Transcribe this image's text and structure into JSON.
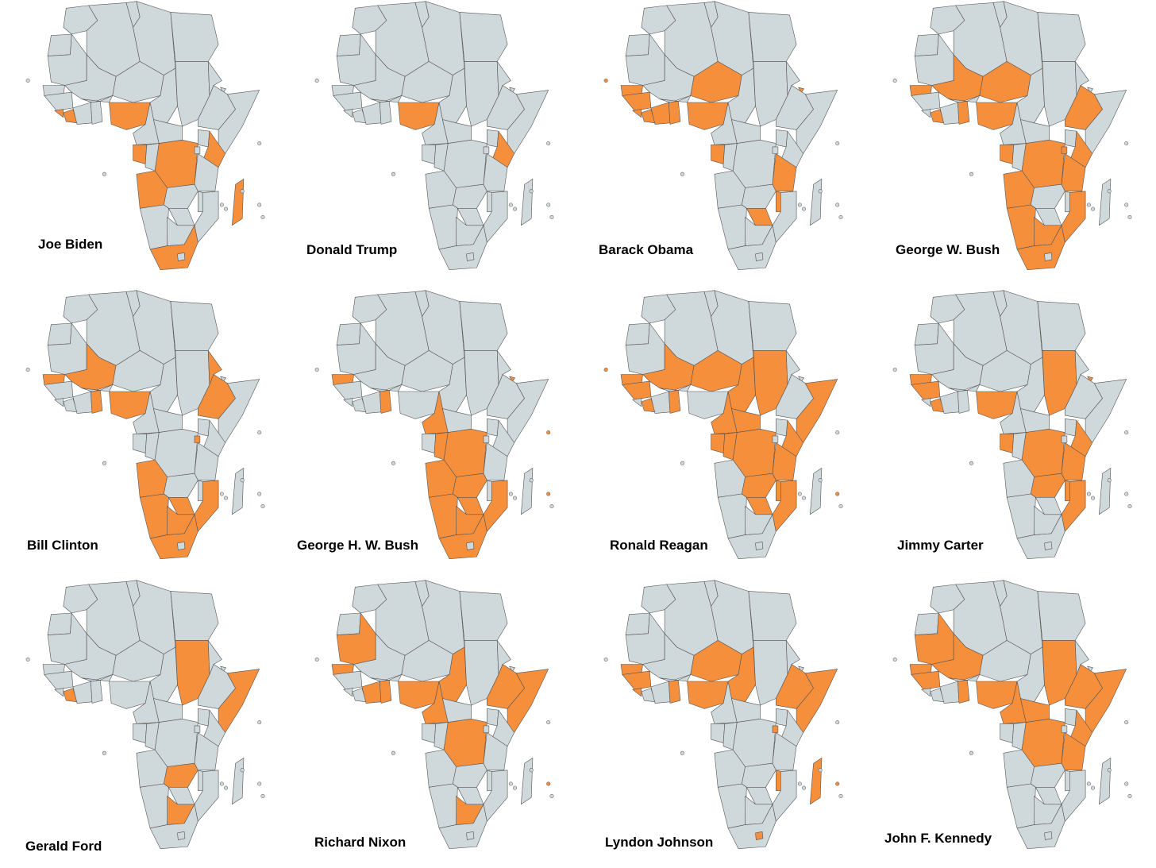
{
  "colors": {
    "land": "#cfd8da",
    "highlight": "#f68f3c",
    "border": "#555555",
    "island": "#cfd8da"
  },
  "maps": [
    {
      "label": "Joe Biden",
      "highlighted": [
        "Nigeria",
        "Sierra Leone",
        "Liberia",
        "Gabon",
        "DR Congo",
        "Angola",
        "Kenya",
        "Madagascar",
        "South Africa"
      ]
    },
    {
      "label": "Donald Trump",
      "highlighted": [
        "Nigeria",
        "Kenya"
      ]
    },
    {
      "label": "Barack Obama",
      "highlighted": [
        "Senegal",
        "Guinea",
        "Sierra Leone",
        "Liberia",
        "Ghana",
        "Côte d'Ivoire",
        "Niger",
        "Nigeria",
        "Gabon",
        "Tanzania",
        "Malawi",
        "Zimbabwe",
        "Djibouti",
        "Cape Verde"
      ]
    },
    {
      "label": "George W. Bush",
      "highlighted": [
        "Mali",
        "Niger",
        "Senegal",
        "Liberia",
        "Ghana",
        "Nigeria",
        "Ethiopia",
        "DR Congo",
        "Rwanda",
        "Tanzania",
        "Kenya",
        "Angola",
        "Namibia",
        "Botswana",
        "Mozambique",
        "South Africa",
        "Gabon"
      ]
    },
    {
      "label": "Bill Clinton",
      "highlighted": [
        "Mali",
        "Senegal",
        "Ghana",
        "Nigeria",
        "Ethiopia",
        "Eritrea",
        "Rwanda",
        "Angola",
        "Namibia",
        "Zimbabwe",
        "Mozambique",
        "South Africa",
        "Botswana"
      ]
    },
    {
      "label": "George H. W. Bush",
      "highlighted": [
        "Senegal",
        "Ghana",
        "Cameroon",
        "DR Congo",
        "Congo",
        "Angola",
        "Namibia",
        "Zambia",
        "Zimbabwe",
        "Mozambique",
        "Botswana",
        "South Africa",
        "Djibouti",
        "Seychelles",
        "Mauritius"
      ]
    },
    {
      "label": "Ronald Reagan",
      "highlighted": [
        "Mali",
        "Niger",
        "Chad",
        "Sudan",
        "Senegal",
        "Guinea",
        "Liberia",
        "Ghana",
        "Cameroon",
        "CAR",
        "Somalia",
        "Kenya",
        "DR Congo",
        "Gabon",
        "Congo",
        "Zambia",
        "Zimbabwe",
        "Malawi",
        "Mozambique",
        "Tanzania",
        "Cape Verde",
        "Mauritius"
      ]
    },
    {
      "label": "Jimmy Carter",
      "highlighted": [
        "Sudan",
        "Senegal",
        "Guinea",
        "Liberia",
        "Nigeria",
        "Gabon",
        "DR Congo",
        "Kenya",
        "Tanzania",
        "Zambia",
        "Malawi",
        "Mozambique",
        "Djibouti"
      ]
    },
    {
      "label": "Gerald Ford",
      "highlighted": [
        "Sudan",
        "Somalia",
        "Liberia",
        "Zambia",
        "Botswana"
      ]
    },
    {
      "label": "Richard Nixon",
      "highlighted": [
        "Mauritania",
        "Senegal",
        "Ghana",
        "Nigeria",
        "Chad",
        "Cameroon",
        "DR Congo",
        "Ethiopia",
        "Somalia",
        "Botswana",
        "Mauritius",
        "Côte d'Ivoire"
      ]
    },
    {
      "label": "Lyndon Johnson",
      "highlighted": [
        "Niger",
        "Chad",
        "Senegal",
        "Guinea",
        "Sierra Leone",
        "Ghana",
        "Nigeria",
        "Ethiopia",
        "Somalia",
        "Rwanda",
        "Malawi",
        "Madagascar",
        "Lesotho",
        "Mauritius"
      ]
    },
    {
      "label": "John F. Kennedy",
      "highlighted": [
        "Mali",
        "Mauritania",
        "Senegal",
        "Guinea",
        "Ghana",
        "Nigeria",
        "Sudan",
        "Ethiopia",
        "Somalia",
        "Cameroon",
        "DR Congo",
        "Tanzania",
        "Kenya",
        "CAR"
      ]
    }
  ]
}
